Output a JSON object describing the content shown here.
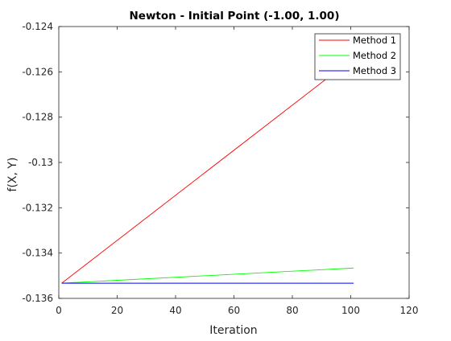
{
  "chart_data": {
    "type": "line",
    "title": "Newton - Initial Point (-1.00, 1.00)",
    "xlabel": "Iteration",
    "ylabel": "f(X, Y)",
    "xlim": [
      0,
      120
    ],
    "ylim": [
      -0.136,
      -0.124
    ],
    "xticks": [
      0,
      20,
      40,
      60,
      80,
      100,
      120
    ],
    "xtick_labels": [
      "0",
      "20",
      "40",
      "60",
      "80",
      "100",
      "120"
    ],
    "yticks": [
      -0.136,
      -0.134,
      -0.132,
      -0.13,
      -0.128,
      -0.126,
      -0.124
    ],
    "ytick_labels": [
      "-0.136",
      "-0.134",
      "-0.132",
      "-0.13",
      "-0.128",
      "-0.126",
      "-0.124"
    ],
    "grid": false,
    "legend_position": "top-right",
    "series": [
      {
        "name": "Method 1",
        "color": "#ff0000",
        "x": [
          1,
          101
        ],
        "y": [
          -0.13533,
          -0.12538
        ]
      },
      {
        "name": "Method 2",
        "color": "#00ff00",
        "x": [
          1,
          101
        ],
        "y": [
          -0.13533,
          -0.13466
        ]
      },
      {
        "name": "Method 3",
        "color": "#0000ff",
        "x": [
          1,
          101
        ],
        "y": [
          -0.13533,
          -0.13533
        ]
      }
    ]
  }
}
